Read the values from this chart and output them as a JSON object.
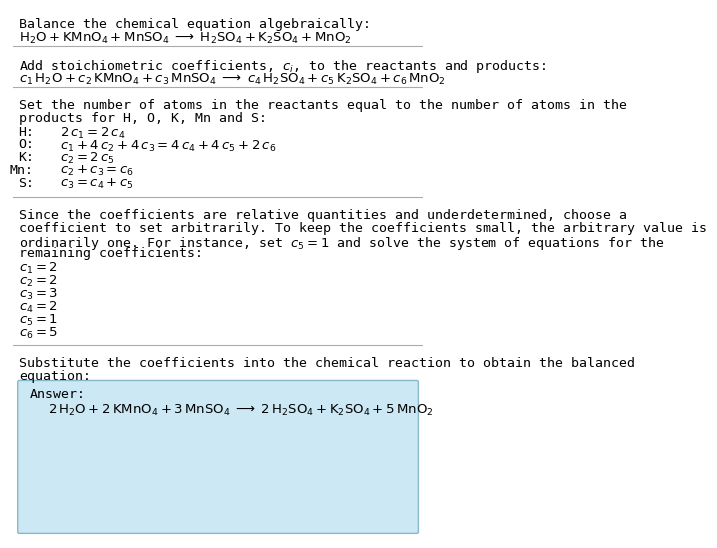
{
  "bg_color": "#ffffff",
  "title_text": "Balance the chemical equation algebraically:",
  "eq1": "$\\mathrm{H_2O + KMnO_4 + MnSO_4 \\;\\longrightarrow\\; H_2SO_4 + K_2SO_4 + MnO_2}$",
  "section2_intro_a": "Add stoichiometric coefficients, ",
  "section2_intro_b": "$c_i$",
  "section2_intro_c": ", to the reactants and products:",
  "eq2": "$c_1\\,\\mathrm{H_2O} + c_2\\,\\mathrm{KMnO_4} + c_3\\,\\mathrm{MnSO_4} \\;\\longrightarrow\\; c_4\\,\\mathrm{H_2SO_4} + c_5\\,\\mathrm{K_2SO_4} + c_6\\,\\mathrm{MnO_2}$",
  "section3_intro1": "Set the number of atoms in the reactants equal to the number of atoms in the",
  "section3_intro2": "products for H, O, K, Mn and S:",
  "atom_labels": [
    "H:",
    "O:",
    "K:",
    "Mn:",
    "S:"
  ],
  "atom_eqs": [
    "$2\\,c_1 = 2\\,c_4$",
    "$c_1 + 4\\,c_2 + 4\\,c_3 = 4\\,c_4 + 4\\,c_5 + 2\\,c_6$",
    "$c_2 = 2\\,c_5$",
    "$c_2 + c_3 = c_6$",
    "$c_3 = c_4 + c_5$"
  ],
  "section4_text1": "Since the coefficients are relative quantities and underdetermined, choose a",
  "section4_text2": "coefficient to set arbitrarily. To keep the coefficients small, the arbitrary value is",
  "section4_text3": "ordinarily one. For instance, set $c_5 = 1$ and solve the system of equations for the",
  "section4_text4": "remaining coefficients:",
  "coef_labels": [
    "$c_1 = 2$",
    "$c_2 = 2$",
    "$c_3 = 3$",
    "$c_4 = 2$",
    "$c_5 = 1$",
    "$c_6 = 5$"
  ],
  "section5_text1": "Substitute the coefficients into the chemical reaction to obtain the balanced",
  "section5_text2": "equation:",
  "answer_label": "Answer:",
  "answer_eq": "$2\\,\\mathrm{H_2O} + 2\\,\\mathrm{KMnO_4} + 3\\,\\mathrm{MnSO_4} \\;\\longrightarrow\\; 2\\,\\mathrm{H_2SO_4} + \\mathrm{K_2SO_4} + 5\\,\\mathrm{MnO_2}$",
  "answer_box_color": "#cce8f4",
  "answer_box_edge": "#88b8cc",
  "font_size": 9.5,
  "line_color": "#aaaaaa",
  "mono_font": "DejaVu Sans Mono",
  "serif_font": "DejaVu Serif"
}
